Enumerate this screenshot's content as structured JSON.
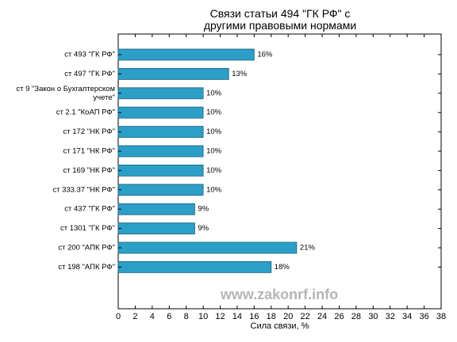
{
  "chart_data": {
    "type": "bar",
    "orientation": "horizontal",
    "title_lines": [
      "Связи статьи 494 \"ГК РФ\" с",
      "другими правовыми нормами"
    ],
    "xlabel": "Сила связи, %",
    "ylabel": "",
    "xlim": [
      0,
      38
    ],
    "xticks": [
      0,
      2,
      4,
      6,
      8,
      10,
      12,
      14,
      16,
      18,
      20,
      22,
      24,
      26,
      28,
      30,
      32,
      34,
      36,
      38
    ],
    "categories": [
      [
        "ст 493 \"ГК РФ\""
      ],
      [
        "ст 497 \"ГК РФ\""
      ],
      [
        "ст 9 \"Закон о Бухгалтерском",
        "учете\""
      ],
      [
        "ст 2.1 \"КоАП РФ\""
      ],
      [
        "ст 172 \"НК РФ\""
      ],
      [
        "ст 171 \"НК РФ\""
      ],
      [
        "ст 169 \"НК РФ\""
      ],
      [
        "ст 333.37 \"НК РФ\""
      ],
      [
        "ст 437 \"ГК РФ\""
      ],
      [
        "ст 1301 \"ГК РФ\""
      ],
      [
        "ст 200 \"АПК РФ\""
      ],
      [
        "ст 198 \"АПК РФ\""
      ]
    ],
    "values": [
      16,
      13,
      10,
      10,
      10,
      10,
      10,
      10,
      9,
      9,
      21,
      18
    ],
    "value_labels": [
      "16%",
      "13%",
      "10%",
      "10%",
      "10%",
      "10%",
      "10%",
      "10%",
      "9%",
      "9%",
      "21%",
      "18%"
    ],
    "bar_color": "#2b9fc7",
    "bar_edge_color": "#1f5f78",
    "grid": false,
    "legend": "none"
  },
  "watermark": "www.zakonrf.info"
}
